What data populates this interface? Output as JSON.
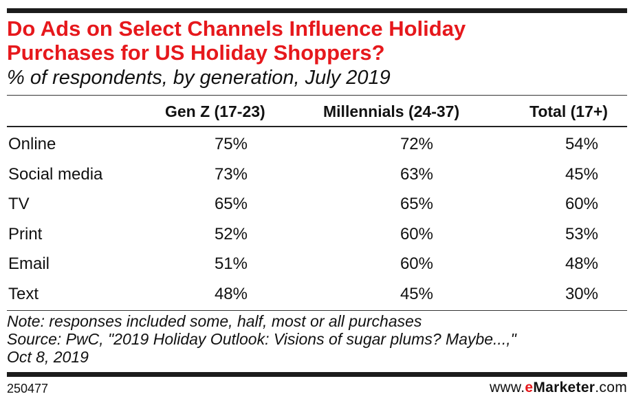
{
  "chart_data": {
    "type": "table",
    "title": "Do Ads on Select Channels Influence Holiday\nPurchases for US Holiday Shoppers?",
    "subtitle": "% of respondents, by generation, July 2019",
    "columns": [
      "Gen Z (17-23)",
      "Millennials (24-37)",
      "Total (17+)"
    ],
    "rows": [
      {
        "label": "Online",
        "values": [
          "75%",
          "72%",
          "54%"
        ]
      },
      {
        "label": "Social media",
        "values": [
          "73%",
          "63%",
          "45%"
        ]
      },
      {
        "label": "TV",
        "values": [
          "65%",
          "65%",
          "60%"
        ]
      },
      {
        "label": "Print",
        "values": [
          "52%",
          "60%",
          "53%"
        ]
      },
      {
        "label": "Email",
        "values": [
          "51%",
          "60%",
          "48%"
        ]
      },
      {
        "label": "Text",
        "values": [
          "48%",
          "45%",
          "30%"
        ]
      }
    ],
    "note": "Note: responses included some, half, most or all purchases",
    "source": "Source: PwC, \"2019 Holiday Outlook: Visions of sugar plums? Maybe...,\"\nOct 8, 2019"
  },
  "footer": {
    "chart_id": "250477",
    "brand_prefix": "www.",
    "brand_e": "e",
    "brand_name": "Marketer",
    "brand_suffix": ".com"
  },
  "colors": {
    "title": "#e6181c",
    "rule": "#1c1c1c",
    "text": "#111111"
  }
}
